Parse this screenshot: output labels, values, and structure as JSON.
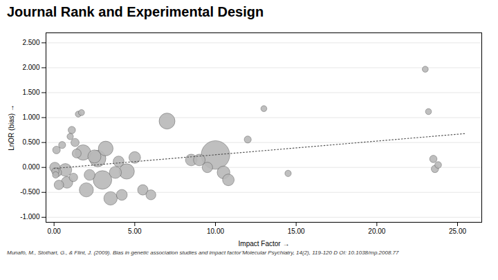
{
  "chart_data": {
    "type": "scatter",
    "title": "Journal Rank and Experimental Design",
    "xlabel": "Impact Factor",
    "ylabel": "LnOR (bias)",
    "footer": "Munafò, M., Stothart, G., & Flint, J. (2009). Bias in genetic association studies  and impact factor’Molecular Psychiatry,  14(2), 119-120 D OI: 10.1038/mp.2008.77",
    "xlim": [
      -0.5,
      26.5
    ],
    "ylim": [
      -1.1,
      2.7
    ],
    "xticks": [
      {
        "value": 0.0,
        "label": "0.00"
      },
      {
        "value": 5.0,
        "label": "5.00"
      },
      {
        "value": 10.0,
        "label": "10.00"
      },
      {
        "value": 15.0,
        "label": "15.00"
      },
      {
        "value": 20.0,
        "label": "20.00"
      },
      {
        "value": 25.0,
        "label": "25.00"
      }
    ],
    "yticks": [
      {
        "value": -1.0,
        "label": "-1.000"
      },
      {
        "value": -0.5,
        "label": "-0.500"
      },
      {
        "value": 0.0,
        "label": "0.000"
      },
      {
        "value": 0.5,
        "label": "0.500"
      },
      {
        "value": 1.0,
        "label": "1.000"
      },
      {
        "value": 1.5,
        "label": "1.500"
      },
      {
        "value": 2.0,
        "label": "2.000"
      },
      {
        "value": 2.5,
        "label": "2.500"
      }
    ],
    "grid": "y",
    "color": "#b8b8b8",
    "x": [
      0.05,
      0.08,
      0.1,
      0.15,
      0.2,
      0.3,
      0.5,
      0.7,
      0.8,
      1.0,
      1.1,
      1.2,
      1.3,
      1.4,
      1.5,
      1.7,
      1.8,
      2.0,
      2.2,
      2.5,
      2.7,
      3.0,
      3.2,
      3.5,
      3.8,
      4.0,
      4.2,
      4.5,
      5.0,
      5.5,
      6.0,
      7.0,
      8.5,
      9.0,
      9.5,
      10.0,
      10.5,
      10.8,
      12.0,
      13.0,
      14.5,
      23.0,
      23.2,
      23.5,
      23.6,
      23.8
    ],
    "values": [
      0.0,
      -0.08,
      -0.15,
      0.35,
      -0.1,
      -0.35,
      0.45,
      -0.05,
      -0.3,
      0.62,
      0.75,
      -0.2,
      0.5,
      0.28,
      1.07,
      1.1,
      0.3,
      -0.45,
      -0.15,
      0.22,
      0.18,
      -0.25,
      0.38,
      -0.62,
      -0.1,
      0.12,
      -0.55,
      -0.08,
      0.2,
      -0.45,
      -0.55,
      0.93,
      0.15,
      0.15,
      0.0,
      0.25,
      -0.1,
      -0.25,
      0.56,
      1.18,
      -0.12,
      1.97,
      1.12,
      0.17,
      -0.03,
      0.05
    ],
    "sizes": [
      120,
      60,
      45,
      65,
      80,
      100,
      55,
      180,
      150,
      45,
      60,
      80,
      75,
      90,
      40,
      40,
      260,
      220,
      130,
      190,
      300,
      380,
      240,
      200,
      160,
      130,
      130,
      260,
      150,
      120,
      110,
      280,
      150,
      150,
      120,
      900,
      180,
      150,
      55,
      40,
      45,
      40,
      40,
      60,
      60,
      50
    ],
    "trendline": {
      "x": [
        0.0,
        25.5
      ],
      "y": [
        -0.02,
        0.68
      ],
      "color": "#555555",
      "line_style": "dotted"
    }
  }
}
